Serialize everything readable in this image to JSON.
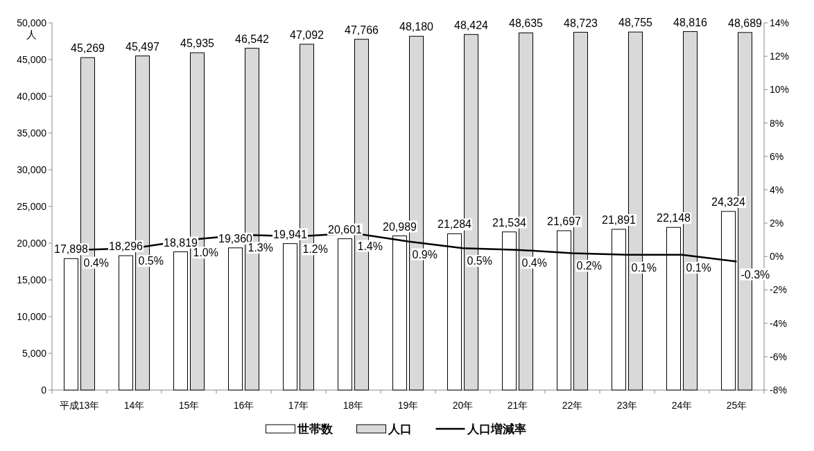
{
  "chart_data": {
    "type": "bar",
    "ylabel": "人",
    "categories": [
      "平成13年",
      "14年",
      "15年",
      "16年",
      "17年",
      "18年",
      "19年",
      "20年",
      "21年",
      "22年",
      "23年",
      "24年",
      "25年"
    ],
    "series": [
      {
        "name": "世帯数",
        "color": "#ffffff",
        "values": [
          17898,
          18296,
          18819,
          19360,
          19941,
          20601,
          20989,
          21284,
          21534,
          21697,
          21891,
          22148,
          24324
        ],
        "value_labels": [
          "17,898",
          "18,296",
          "18,819",
          "19,360",
          "19,941",
          "20,601",
          "20,989",
          "21,284",
          "21,534",
          "21,697",
          "21,891",
          "22,148",
          "24,324"
        ]
      },
      {
        "name": "人口",
        "color": "#d9d9d9",
        "values": [
          45269,
          45497,
          45935,
          46542,
          47092,
          47766,
          48180,
          48424,
          48635,
          48723,
          48755,
          48816,
          48689
        ],
        "value_labels": [
          "45,269",
          "45,497",
          "45,935",
          "46,542",
          "47,092",
          "47,766",
          "48,180",
          "48,424",
          "48,635",
          "48,723",
          "48,755",
          "48,816",
          "48,689"
        ]
      },
      {
        "name": "人口増減率",
        "type": "line",
        "axis": "y2",
        "color": "#000000",
        "values": [
          0.4,
          0.5,
          1.0,
          1.3,
          1.2,
          1.4,
          0.9,
          0.5,
          0.4,
          0.2,
          0.1,
          0.1,
          -0.3
        ],
        "value_labels": [
          "0.4%",
          "0.5%",
          "1.0%",
          "1.3%",
          "1.2%",
          "1.4%",
          "0.9%",
          "0.5%",
          "0.4%",
          "0.2%",
          "0.1%",
          "0.1%",
          "-0.3%"
        ]
      }
    ],
    "ylim": [
      0,
      50000
    ],
    "yticks": [
      0,
      {
        "value": 5000,
        "label": "5,000"
      },
      {
        "value": 10000,
        "label": "10,000"
      },
      {
        "value": 15000,
        "label": "15,000"
      },
      {
        "value": 20000,
        "label": "20,000"
      },
      {
        "value": 25000,
        "label": "25,000"
      },
      {
        "value": 30000,
        "label": "30,000"
      },
      {
        "value": 35000,
        "label": "35,000"
      },
      {
        "value": 40000,
        "label": "40,000"
      },
      {
        "value": 45000,
        "label": "45,000"
      },
      {
        "value": 50000,
        "label": "50,000"
      }
    ],
    "y2lim": [
      -8,
      14
    ],
    "y2ticks": [
      {
        "value": -8,
        "label": "-8%"
      },
      {
        "value": -6,
        "label": "-6%"
      },
      {
        "value": -4,
        "label": "-4%"
      },
      {
        "value": -2,
        "label": "-2%"
      },
      {
        "value": 0,
        "label": "0%"
      },
      {
        "value": 2,
        "label": "2%"
      },
      {
        "value": 4,
        "label": "4%"
      },
      {
        "value": 6,
        "label": "6%"
      },
      {
        "value": 8,
        "label": "8%"
      },
      {
        "value": 10,
        "label": "10%"
      },
      {
        "value": 12,
        "label": "12%"
      },
      {
        "value": 14,
        "label": "14%"
      }
    ],
    "legend": "bottom"
  }
}
